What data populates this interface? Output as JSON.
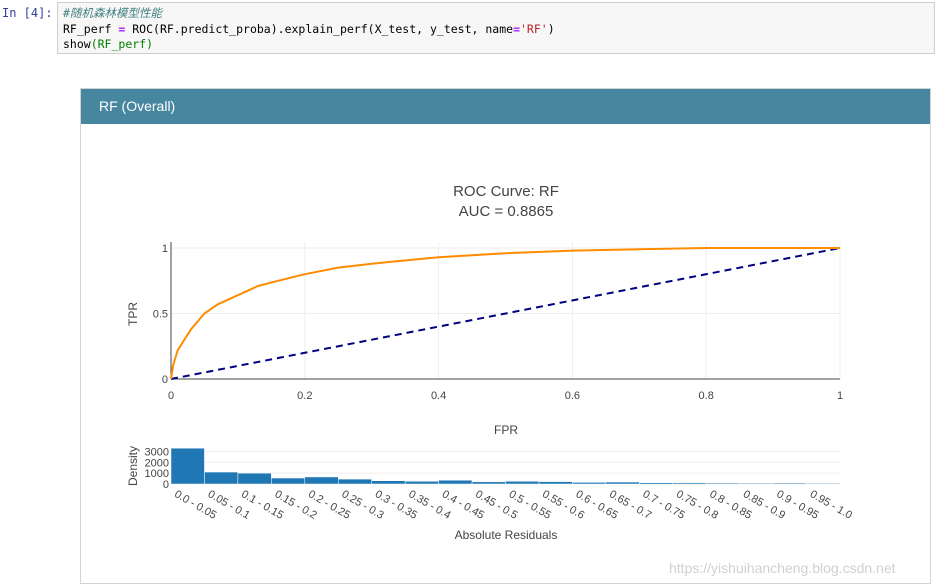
{
  "cell": {
    "prompt": "In  [4]:",
    "comment": "#随机森林模型性能",
    "line2_a": "RF_perf ",
    "line2_eq": "=",
    "line2_b": " ROC(RF.predict_proba).explain_perf(X_test, y_test, name",
    "line2_eq2": "=",
    "line2_str": "'RF'",
    "line2_c": ")",
    "line3_a": "show",
    "line3_b": "(RF_perf",
    "line3_c": ")"
  },
  "panel": {
    "title": "RF (Overall)"
  },
  "colors": {
    "header": "#46869f",
    "roc": "#ff8c00",
    "diagonal": "#000080",
    "bars": "#1f77b4"
  },
  "chart_data": [
    {
      "type": "line",
      "title": "ROC Curve: RF",
      "subtitle": "AUC = 0.8865",
      "xlabel": "FPR",
      "ylabel": "TPR",
      "xlim": [
        0,
        1
      ],
      "ylim": [
        0,
        1
      ],
      "xticks": [
        "0",
        "0.2",
        "0.4",
        "0.6",
        "0.8",
        "1"
      ],
      "yticks": [
        "0",
        "0.5",
        "1"
      ],
      "grid": true,
      "roc_curve": {
        "x": [
          0,
          0.003,
          0.01,
          0.02,
          0.03,
          0.05,
          0.07,
          0.1,
          0.13,
          0.16,
          0.2,
          0.25,
          0.3,
          0.4,
          0.5,
          0.6,
          0.7,
          0.8,
          0.9,
          1.0
        ],
        "y": [
          0,
          0.1,
          0.22,
          0.3,
          0.38,
          0.5,
          0.57,
          0.64,
          0.71,
          0.75,
          0.8,
          0.85,
          0.88,
          0.93,
          0.96,
          0.98,
          0.99,
          1.0,
          1.0,
          1.0
        ]
      },
      "diagonal": {
        "x": [
          0,
          1
        ],
        "y": [
          0,
          1
        ]
      }
    },
    {
      "type": "bar",
      "xlabel": "Absolute Residuals",
      "ylabel": "Density",
      "ylim": [
        0,
        3500
      ],
      "yticks": [
        "0",
        "1000",
        "2000",
        "3000"
      ],
      "categories": [
        "0.0 - 0.05",
        "0.05 - 0.1",
        "0.1 - 0.15",
        "0.15 - 0.2",
        "0.2 - 0.25",
        "0.25 - 0.3",
        "0.3 - 0.35",
        "0.35 - 0.4",
        "0.4 - 0.45",
        "0.45 - 0.5",
        "0.5 - 0.55",
        "0.55 - 0.6",
        "0.6 - 0.65",
        "0.65 - 0.7",
        "0.7 - 0.75",
        "0.75 - 0.8",
        "0.8 - 0.85",
        "0.85 - 0.9",
        "0.9 - 0.95",
        "0.95 - 1.0"
      ],
      "values": [
        3300,
        1100,
        1000,
        550,
        650,
        450,
        300,
        250,
        350,
        200,
        250,
        220,
        150,
        180,
        120,
        110,
        90,
        80,
        90,
        70
      ]
    }
  ],
  "watermark": "https://yishuihancheng.blog.csdn.net"
}
